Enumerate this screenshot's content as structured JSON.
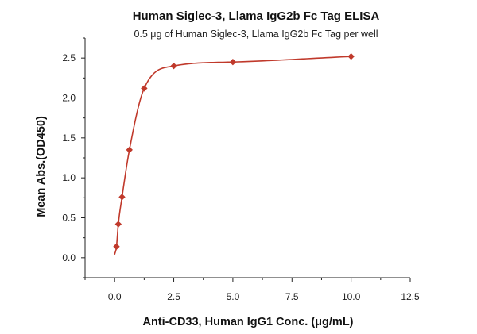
{
  "chart_data": {
    "type": "scatter",
    "title": "Human Siglec-3, Llama IgG2b Fc Tag ELISA",
    "subtitle": "0.5 μg of Human Siglec-3, Llama IgG2b Fc Tag per well",
    "xlabel": "Anti-CD33, Human IgG1 Conc. (μg/mL)",
    "ylabel": "Mean Abs.(OD450)",
    "xlim": [
      -1.25,
      12.5
    ],
    "ylim": [
      -0.25,
      2.75
    ],
    "xticks": [
      {
        "value": 0,
        "label": "0.0"
      },
      {
        "value": 2.5,
        "label": "2.5"
      },
      {
        "value": 5,
        "label": "5.0"
      },
      {
        "value": 7.5,
        "label": "7.5"
      },
      {
        "value": 10,
        "label": "10.0"
      },
      {
        "value": 12.5,
        "label": "12.5"
      }
    ],
    "yticks": [
      {
        "value": 0,
        "label": "0.0"
      },
      {
        "value": 0.5,
        "label": "0.5"
      },
      {
        "value": 1,
        "label": "1.0"
      },
      {
        "value": 1.5,
        "label": "1.5"
      },
      {
        "value": 2,
        "label": "2.0"
      },
      {
        "value": 2.5,
        "label": "2.5"
      }
    ],
    "grid": false,
    "color": "#c0392b",
    "marker": "diamond",
    "x": [
      0.078,
      0.156,
      0.313,
      0.625,
      1.25,
      2.5,
      5,
      10
    ],
    "y": [
      0.14,
      0.42,
      0.76,
      1.35,
      2.12,
      2.4,
      2.45,
      2.52
    ],
    "fit": "4PL"
  }
}
